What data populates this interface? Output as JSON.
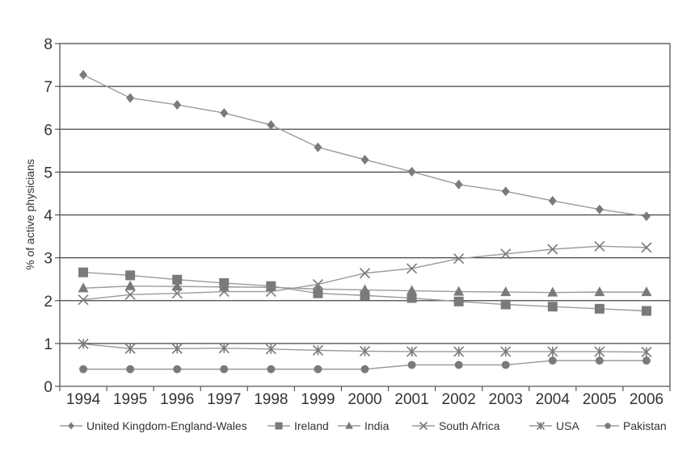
{
  "chart_data": {
    "type": "line",
    "title": "",
    "xlabel": "",
    "ylabel": "% of active physicians",
    "ylim": [
      0,
      8
    ],
    "yticks": [
      "0",
      "1",
      "2",
      "3",
      "4",
      "5",
      "6",
      "7",
      "8"
    ],
    "categories": [
      "1994",
      "1995",
      "1996",
      "1997",
      "1998",
      "1999",
      "2000",
      "2001",
      "2002",
      "2003",
      "2004",
      "2005",
      "2006"
    ],
    "grid": true,
    "legend_position": "bottom",
    "series": [
      {
        "name": "United Kingdom-England-Wales",
        "marker": "diamond",
        "values": [
          7.27,
          6.73,
          6.57,
          6.38,
          6.1,
          5.58,
          5.29,
          5.01,
          4.71,
          4.55,
          4.33,
          4.13,
          3.97
        ]
      },
      {
        "name": "Ireland",
        "marker": "square",
        "values": [
          2.66,
          2.59,
          2.49,
          2.41,
          2.34,
          2.17,
          2.12,
          2.06,
          1.98,
          1.91,
          1.86,
          1.81,
          1.76
        ]
      },
      {
        "name": "India",
        "marker": "triangle",
        "values": [
          2.29,
          2.34,
          2.33,
          2.32,
          2.31,
          2.27,
          2.25,
          2.23,
          2.21,
          2.2,
          2.19,
          2.2,
          2.2
        ]
      },
      {
        "name": "South Africa",
        "marker": "x",
        "values": [
          2.02,
          2.14,
          2.17,
          2.21,
          2.21,
          2.38,
          2.64,
          2.75,
          2.98,
          3.09,
          3.2,
          3.27,
          3.24
        ]
      },
      {
        "name": "USA",
        "marker": "asterisk",
        "values": [
          0.99,
          0.88,
          0.88,
          0.89,
          0.87,
          0.84,
          0.82,
          0.81,
          0.81,
          0.81,
          0.81,
          0.81,
          0.8
        ]
      },
      {
        "name": "Pakistan",
        "marker": "circle",
        "values": [
          0.4,
          0.4,
          0.4,
          0.4,
          0.4,
          0.4,
          0.4,
          0.5,
          0.5,
          0.5,
          0.6,
          0.6,
          0.6
        ]
      }
    ]
  }
}
